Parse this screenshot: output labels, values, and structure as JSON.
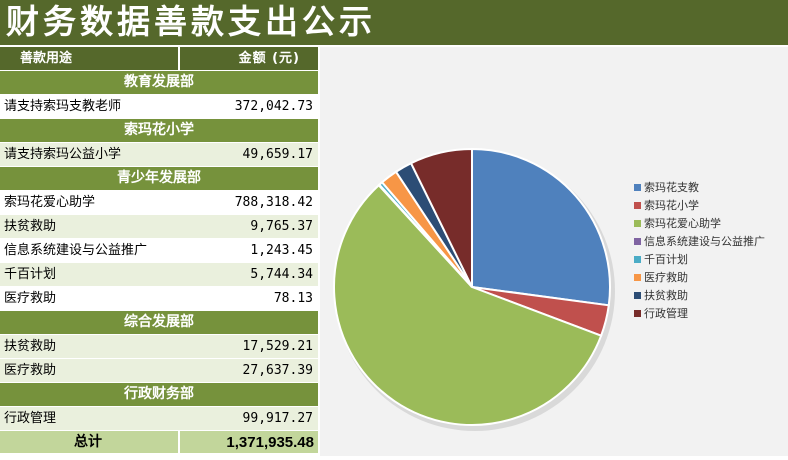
{
  "title": "财务数据善款支出公示",
  "table": {
    "header": {
      "label": "善款用途",
      "amount": "金额 (元)"
    },
    "sections": [
      {
        "name": "教育发展部",
        "rows": [
          {
            "label": "请支持索玛支教老师",
            "amount": "372,042.73"
          }
        ]
      },
      {
        "name": "索玛花小学",
        "rows": [
          {
            "label": "请支持索玛公益小学",
            "amount": "49,659.17"
          }
        ]
      },
      {
        "name": "青少年发展部",
        "rows": [
          {
            "label": "索玛花爱心助学",
            "amount": "788,318.42"
          },
          {
            "label": "扶贫救助",
            "amount": "9,765.37"
          },
          {
            "label": "信息系统建设与公益推广",
            "amount": "1,243.45"
          },
          {
            "label": "千百计划",
            "amount": "5,744.34"
          },
          {
            "label": "医疗救助",
            "amount": "78.13"
          }
        ]
      },
      {
        "name": "综合发展部",
        "rows": [
          {
            "label": "扶贫救助",
            "amount": "17,529.21"
          },
          {
            "label": "医疗救助",
            "amount": "27,637.39"
          }
        ]
      },
      {
        "name": "行政财务部",
        "rows": [
          {
            "label": "行政管理",
            "amount": "99,917.27"
          }
        ]
      }
    ],
    "total": {
      "label": "总计",
      "amount": "1,371,935.48"
    }
  },
  "chart_data": {
    "type": "pie",
    "categories": [
      "索玛花支教",
      "索玛花小学",
      "索玛花爱心助学",
      "信息系统建设与公益推广",
      "千百计划",
      "医疗救助",
      "扶贫救助",
      "行政管理"
    ],
    "values": [
      372042.73,
      49659.17,
      788318.42,
      1243.45,
      5744.34,
      27715.52,
      27294.58,
      99917.27
    ],
    "colors": [
      "#4f81bd",
      "#c0504d",
      "#9bbb59",
      "#8064a2",
      "#4bacc6",
      "#f79646",
      "#2c4d75",
      "#772c2a"
    ],
    "legend_position": "right"
  }
}
